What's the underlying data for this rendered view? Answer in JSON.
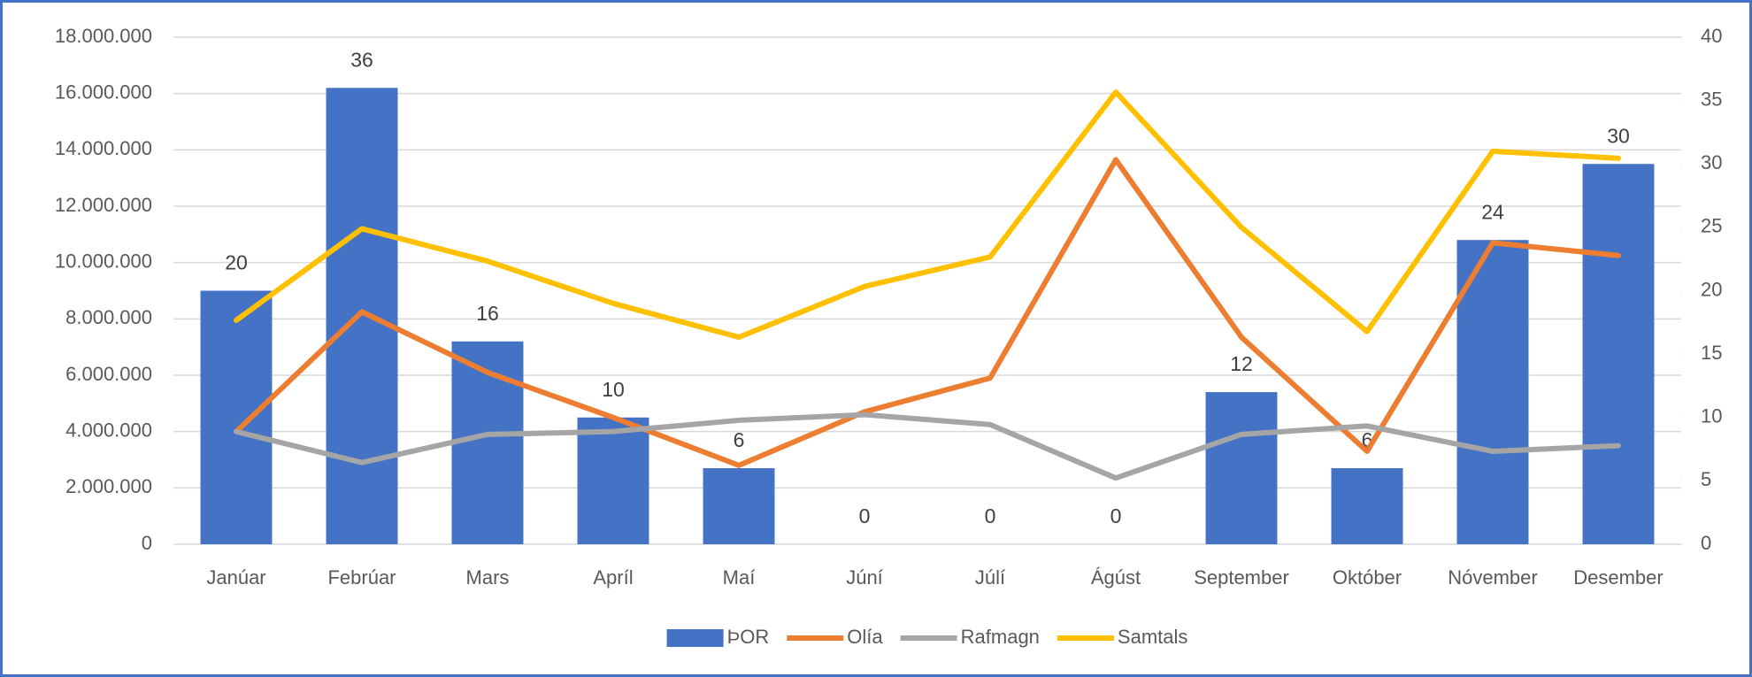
{
  "chart_data": {
    "type": "bar",
    "categories": [
      "Janúar",
      "Febrúar",
      "Mars",
      "Apríl",
      "Maí",
      "Júní",
      "Júlí",
      "Ágúst",
      "September",
      "Október",
      "Nóvember",
      "Desember"
    ],
    "series": [
      {
        "name": "ÞOR",
        "type": "bar",
        "axis": "y2",
        "color": "#4472c4",
        "values": [
          20,
          36,
          16,
          10,
          6,
          0,
          0,
          0,
          12,
          6,
          24,
          30
        ]
      },
      {
        "name": "Olía",
        "type": "line",
        "color": "#ed7d31",
        "values": [
          4000000,
          8250000,
          6100000,
          4500000,
          2800000,
          4700000,
          5900000,
          13650000,
          7350000,
          3300000,
          10700000,
          10250000
        ]
      },
      {
        "name": "Rafmagn",
        "type": "line",
        "color": "#a5a5a5",
        "values": [
          4000000,
          2900000,
          3900000,
          4000000,
          4400000,
          4600000,
          4250000,
          2350000,
          3900000,
          4200000,
          3300000,
          3500000
        ]
      },
      {
        "name": "Samtals",
        "type": "line",
        "color": "#ffc000",
        "values": [
          7950000,
          11200000,
          10050000,
          8550000,
          7350000,
          9150000,
          10200000,
          16050000,
          11250000,
          7550000,
          13950000,
          13700000
        ]
      }
    ],
    "ylim": [
      0,
      18000000
    ],
    "yticks": [
      {
        "value": 0,
        "label": "0"
      },
      {
        "value": 2000000,
        "label": "2.000.000"
      },
      {
        "value": 4000000,
        "label": "4.000.000"
      },
      {
        "value": 6000000,
        "label": "6.000.000"
      },
      {
        "value": 8000000,
        "label": "8.000.000"
      },
      {
        "value": 10000000,
        "label": "10.000.000"
      },
      {
        "value": 12000000,
        "label": "12.000.000"
      },
      {
        "value": 14000000,
        "label": "14.000.000"
      },
      {
        "value": 16000000,
        "label": "16.000.000"
      },
      {
        "value": 18000000,
        "label": "18.000.000"
      }
    ],
    "y2lim": [
      0,
      40
    ],
    "y2ticks": [
      0,
      5,
      10,
      15,
      20,
      25,
      30,
      35,
      40
    ],
    "grid": true,
    "legend": "bottom"
  }
}
